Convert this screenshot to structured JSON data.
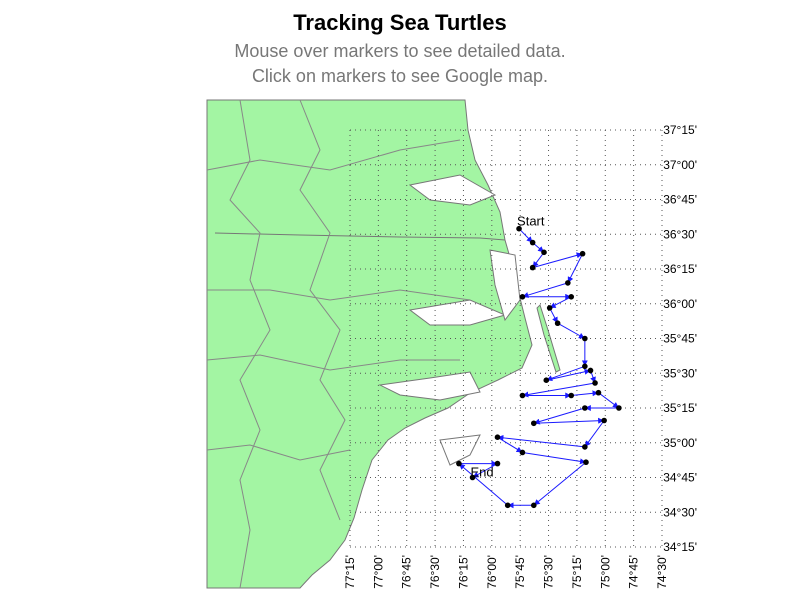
{
  "header": {
    "title": "Tracking Sea Turtles",
    "subtitle_lines": [
      "Mouse over markers to see detailed data.",
      "Click on markers to see Google map."
    ]
  },
  "map": {
    "lat_ticks": [
      {
        "value": 37.25,
        "label": "37°15'"
      },
      {
        "value": 37.0,
        "label": "37°00'"
      },
      {
        "value": 36.75,
        "label": "36°45'"
      },
      {
        "value": 36.5,
        "label": "36°30'"
      },
      {
        "value": 36.25,
        "label": "36°15'"
      },
      {
        "value": 36.0,
        "label": "36°00'"
      },
      {
        "value": 35.75,
        "label": "35°45'"
      },
      {
        "value": 35.5,
        "label": "35°30'"
      },
      {
        "value": 35.25,
        "label": "35°15'"
      },
      {
        "value": 35.0,
        "label": "35°00'"
      },
      {
        "value": 34.75,
        "label": "34°45'"
      },
      {
        "value": 34.5,
        "label": "34°30'"
      },
      {
        "value": 34.25,
        "label": "34°15'"
      }
    ],
    "lon_ticks": [
      {
        "value": 77.25,
        "label": "77°15'"
      },
      {
        "value": 77.0,
        "label": "77°00'"
      },
      {
        "value": 76.75,
        "label": "76°45'"
      },
      {
        "value": 76.5,
        "label": "76°30'"
      },
      {
        "value": 76.25,
        "label": "76°15'"
      },
      {
        "value": 76.0,
        "label": "76°00'"
      },
      {
        "value": 75.75,
        "label": "75°45'"
      },
      {
        "value": 75.5,
        "label": "75°30'"
      },
      {
        "value": 75.25,
        "label": "75°15'"
      },
      {
        "value": 75.0,
        "label": "75°00'"
      },
      {
        "value": 74.75,
        "label": "74°45'"
      },
      {
        "value": 74.5,
        "label": "74°30'"
      }
    ],
    "start_label": "Start",
    "end_label": "End",
    "track": {
      "lon_west": [
        75.76,
        75.64,
        75.54,
        75.64,
        75.2,
        75.33,
        75.73,
        75.3,
        75.49,
        75.42,
        75.18,
        75.18,
        75.52,
        75.13,
        75.09,
        75.73,
        75.3,
        75.06,
        74.88,
        75.18,
        75.63,
        75.01,
        75.18,
        75.95,
        75.73,
        75.17,
        75.63,
        75.86,
        76.29,
        75.95,
        76.17
      ],
      "lat": [
        36.54,
        36.44,
        36.37,
        36.26,
        36.36,
        36.15,
        36.05,
        36.05,
        35.97,
        35.86,
        35.75,
        35.55,
        35.45,
        35.52,
        35.43,
        35.34,
        35.34,
        35.36,
        35.25,
        35.25,
        35.14,
        35.16,
        34.97,
        35.04,
        34.93,
        34.86,
        34.55,
        34.55,
        34.85,
        34.85,
        34.75
      ]
    }
  }
}
